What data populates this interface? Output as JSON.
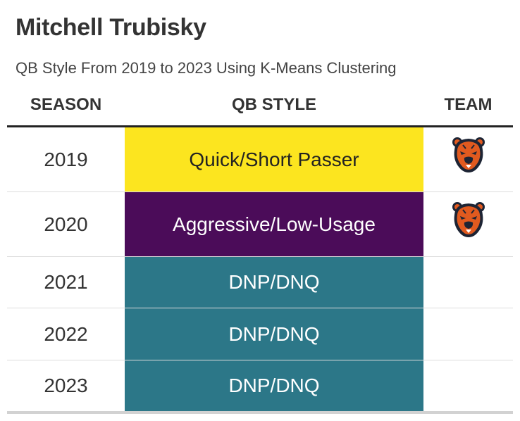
{
  "title": "Mitchell Trubisky",
  "subtitle": "QB Style From 2019 to 2023 Using K-Means Clustering",
  "columns": {
    "season": "SEASON",
    "qb_style": "QB STYLE",
    "team": "TEAM"
  },
  "rows": [
    {
      "season": "2019",
      "qb_style": "Quick/Short Passer",
      "style_bg": "#fce51f",
      "style_fg": "#222222",
      "team_logo": "chicago-bears-logo-icon"
    },
    {
      "season": "2020",
      "qb_style": "Aggressive/Low-Usage",
      "style_bg": "#4b0c59",
      "style_fg": "#ffffff",
      "team_logo": "chicago-bears-logo-icon"
    },
    {
      "season": "2021",
      "qb_style": "DNP/DNQ",
      "style_bg": "#2c7788",
      "style_fg": "#ffffff",
      "team_logo": ""
    },
    {
      "season": "2022",
      "qb_style": "DNP/DNQ",
      "style_bg": "#2c7788",
      "style_fg": "#ffffff",
      "team_logo": ""
    },
    {
      "season": "2023",
      "qb_style": "DNP/DNQ",
      "style_bg": "#2c7788",
      "style_fg": "#ffffff",
      "team_logo": ""
    }
  ],
  "colors": {
    "bears_orange": "#e15a1f",
    "bears_navy": "#1d2434",
    "header_rule": "#222222"
  }
}
